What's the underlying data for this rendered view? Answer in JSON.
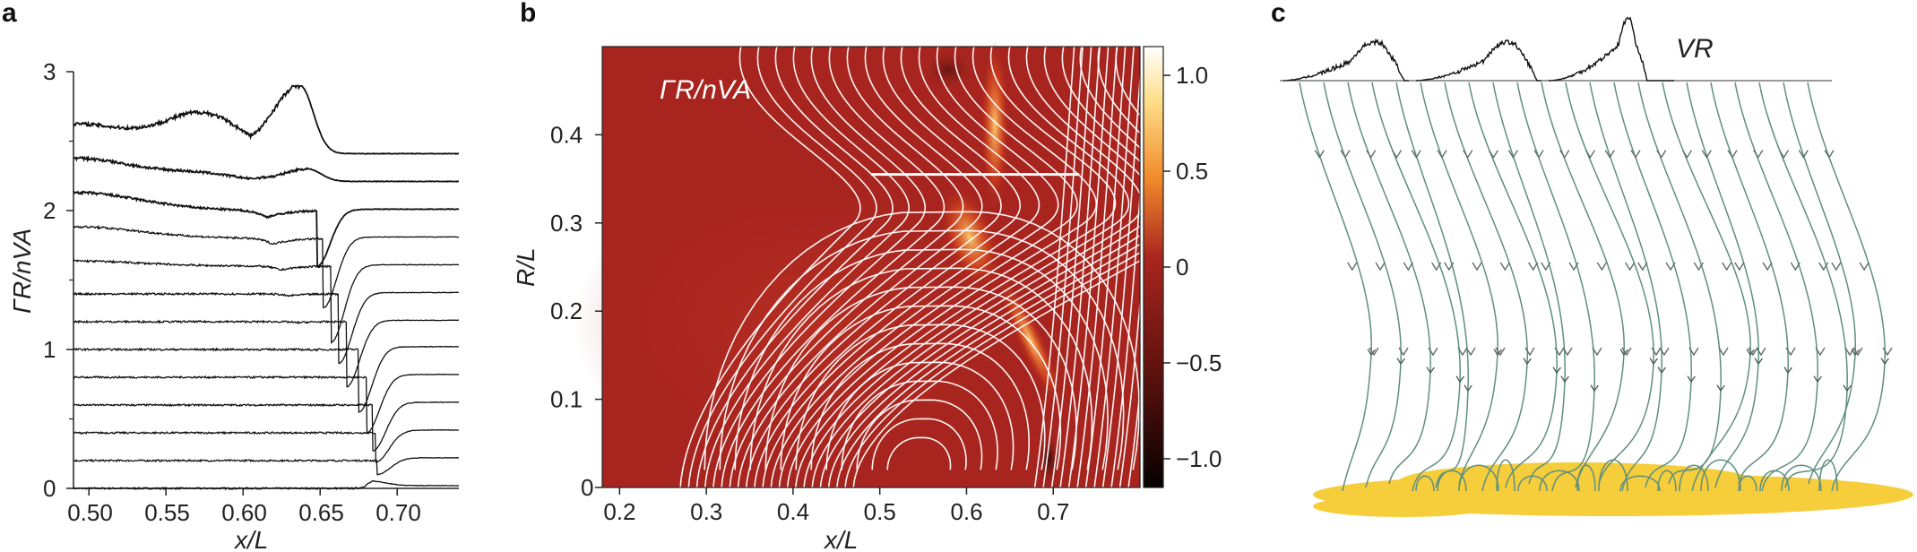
{
  "panels": {
    "a": {
      "label": "a"
    },
    "b": {
      "label": "b"
    },
    "c": {
      "label": "c"
    }
  },
  "chart_data": [
    {
      "type": "line",
      "panel": "a",
      "xlabel": "x/L",
      "ylabel": "ΓR/nVA",
      "xlim": [
        0.49,
        0.74
      ],
      "ylim": [
        0,
        3
      ],
      "xticks": [
        "0.50",
        "0.55",
        "0.60",
        "0.65",
        "0.70"
      ],
      "yticks": [
        "0",
        "1",
        "2",
        "3"
      ],
      "grid": false,
      "n_series": 13,
      "series_baselines": [
        0.0,
        0.2,
        0.4,
        0.6,
        0.8,
        1.0,
        1.2,
        1.4,
        1.6,
        1.8,
        2.0,
        2.2,
        2.4
      ],
      "series_peak_x": [
        0.685,
        0.687,
        0.686,
        0.684,
        0.68,
        0.675,
        0.667,
        0.662,
        0.657,
        0.652,
        0.648,
        0.642,
        0.637
      ],
      "series_peak_y": [
        0.05,
        0.1,
        0.19,
        0.27,
        0.4,
        0.55,
        0.73,
        0.9,
        1.05,
        1.3,
        1.6,
        2.3,
        2.9
      ],
      "series_end_y": [
        0.02,
        0.22,
        0.42,
        0.62,
        0.82,
        1.02,
        1.21,
        1.41,
        1.61,
        1.81,
        2.01,
        2.21,
        2.41
      ]
    },
    {
      "type": "heatmap",
      "panel": "b",
      "xlabel": "x/L",
      "ylabel": "R/L",
      "xlim": [
        0.18,
        0.8
      ],
      "ylim": [
        0,
        0.5
      ],
      "xticks": [
        "0.2",
        "0.3",
        "0.4",
        "0.5",
        "0.6",
        "0.7"
      ],
      "yticks": [
        "0",
        "0.1",
        "0.2",
        "0.3",
        "0.4"
      ],
      "annotation": "ΓR/nVA",
      "colorbar": {
        "range": [
          -1.15,
          1.15
        ],
        "ticks": [
          "1.0",
          "0.5",
          "0",
          "−0.5",
          "−1.0"
        ]
      },
      "colors": {
        "background": "#a8251f",
        "hot": "#ffd070",
        "cold": "#150505",
        "cutline": "#ffffff"
      },
      "cut_line": {
        "x": [
          0.49,
          0.73
        ],
        "y": 0.355
      }
    },
    {
      "type": "diagram",
      "panel": "c",
      "label": "VR",
      "colors": {
        "streamline": "#5e8f80",
        "base": "#f6cd3b"
      }
    }
  ]
}
